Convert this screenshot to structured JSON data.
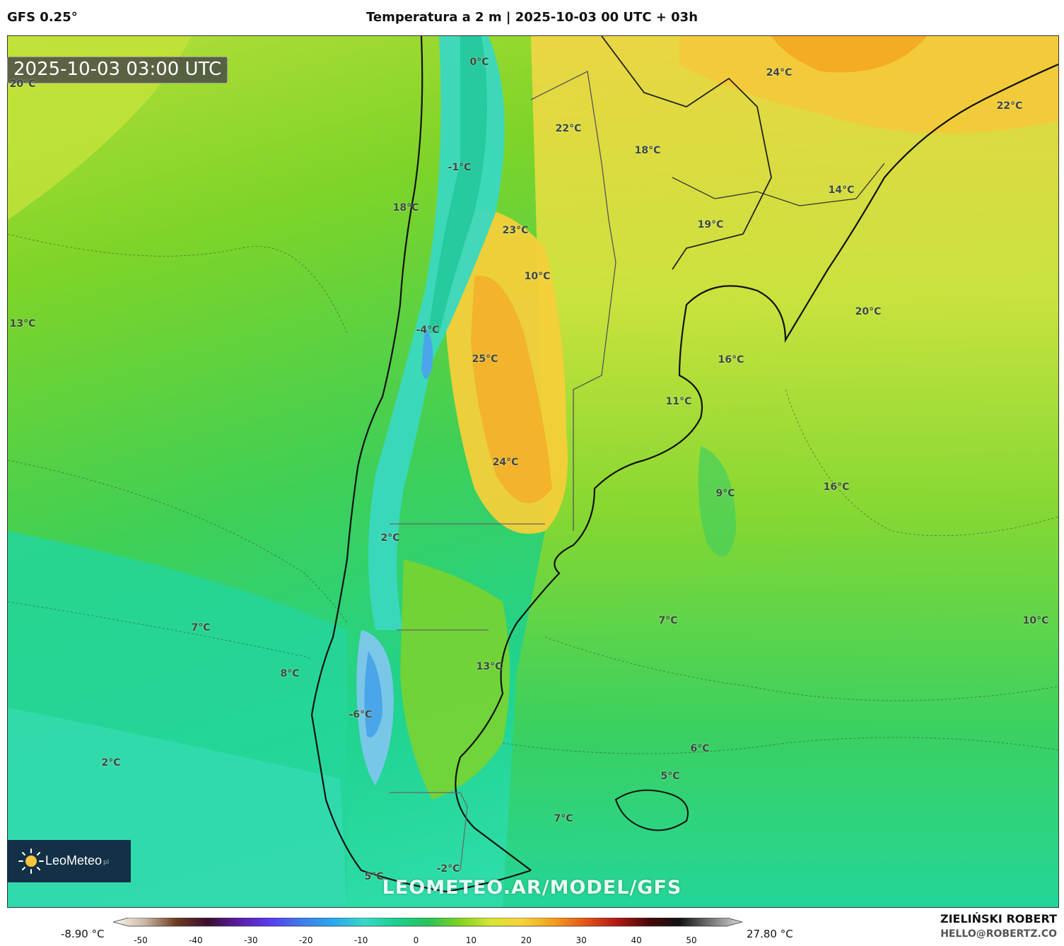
{
  "header": {
    "model": "GFS 0.25°",
    "title": "Temperatura a 2 m | 2025-10-03 00 UTC + 03h"
  },
  "map": {
    "timestamp": "2025-10-03 03:00 UTC",
    "watermark": "LEOMETEO.AR/MODEL/GFS",
    "logo_text": "LeoMeteo",
    "logo_suffix": "pl",
    "logo_icon": "sun-icon",
    "labels": [
      {
        "text": "20°C"
      },
      {
        "text": "0°C"
      },
      {
        "text": "24°C"
      },
      {
        "text": "22°C"
      },
      {
        "text": "22°C"
      },
      {
        "text": "18°C"
      },
      {
        "text": "-1°C"
      },
      {
        "text": "14°C"
      },
      {
        "text": "18°C"
      },
      {
        "text": "23°C"
      },
      {
        "text": "19°C"
      },
      {
        "text": "10°C"
      },
      {
        "text": "20°C"
      },
      {
        "text": "13°C"
      },
      {
        "text": "-4°C"
      },
      {
        "text": "25°C"
      },
      {
        "text": "16°C"
      },
      {
        "text": "11°C"
      },
      {
        "text": "24°C"
      },
      {
        "text": "16°C"
      },
      {
        "text": "9°C"
      },
      {
        "text": "2°C"
      },
      {
        "text": "7°C"
      },
      {
        "text": "7°C"
      },
      {
        "text": "10°C"
      },
      {
        "text": "13°C"
      },
      {
        "text": "8°C"
      },
      {
        "text": "-6°C"
      },
      {
        "text": "6°C"
      },
      {
        "text": "2°C"
      },
      {
        "text": "5°C"
      },
      {
        "text": "7°C"
      },
      {
        "text": "-2°C"
      },
      {
        "text": "5°C"
      }
    ]
  },
  "colorbar": {
    "min_label": "-8.90 °C",
    "max_label": "27.80 °C",
    "ticks": [
      "-50",
      "-40",
      "-30",
      "-20",
      "-10",
      "0",
      "10",
      "20",
      "30",
      "40",
      "50"
    ],
    "stops": [
      "#fdfaf5",
      "#c9b8a6",
      "#6e3b22",
      "#3a0f2e",
      "#5b1ca8",
      "#5a3cf0",
      "#3f7ce8",
      "#2aa9f0",
      "#38d8c8",
      "#1bd08f",
      "#25c45a",
      "#7fd21e",
      "#d6e636",
      "#f6d23a",
      "#f4a01a",
      "#e3561a",
      "#b21a10",
      "#4a0808",
      "#111111",
      "#777777",
      "#d8d8d8"
    ]
  },
  "credits": {
    "author": "ZIELIŃSKI ROBERT",
    "email": "HELLO@ROBERTZ.CO"
  },
  "colors": {
    "ocean_cold": "#2fdca6",
    "ocean_cool": "#1ed48c",
    "mid": "#5bd534",
    "warm": "#c9e43c",
    "hot": "#f2c62c",
    "hottest": "#f3a61e",
    "andes_cold": "#39d9c4",
    "ice": "#4aa6e8"
  }
}
